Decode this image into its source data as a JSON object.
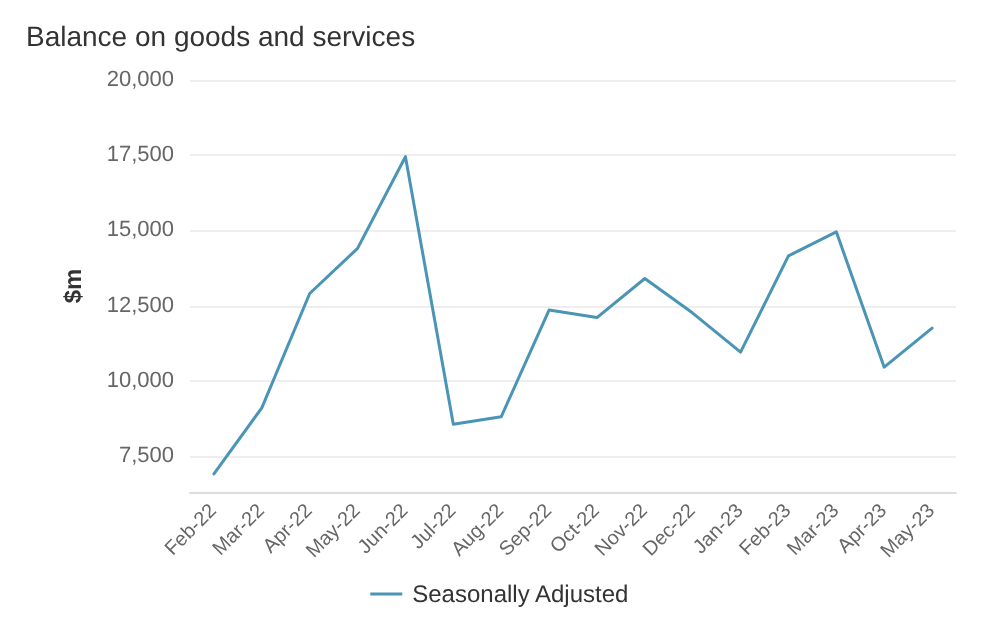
{
  "chart_data": {
    "type": "line",
    "title": "Balance on goods and services",
    "ylabel": "$m",
    "categories": [
      "Feb-22",
      "Mar-22",
      "Apr-22",
      "May-22",
      "Jun-22",
      "Jul-22",
      "Aug-22",
      "Sep-22",
      "Oct-22",
      "Nov-22",
      "Dec-22",
      "Jan-23",
      "Feb-23",
      "Mar-23",
      "Apr-23",
      "May-23"
    ],
    "series": [
      {
        "name": "Seasonally Adjusted",
        "color": "#4a95b5",
        "values": [
          6900,
          9100,
          12900,
          14400,
          17450,
          8550,
          8800,
          12350,
          12100,
          13400,
          12250,
          10950,
          14150,
          14950,
          10450,
          11750
        ]
      }
    ],
    "ylim": [
      6300,
      20000
    ],
    "yticks": [
      {
        "value": 7500,
        "label": "7,500"
      },
      {
        "value": 10000,
        "label": "10,000"
      },
      {
        "value": 12500,
        "label": "12,500"
      },
      {
        "value": 15000,
        "label": "15,000"
      },
      {
        "value": 17500,
        "label": "17,500"
      },
      {
        "value": 20000,
        "label": "20,000"
      }
    ],
    "grid": "y",
    "legend": "bottom",
    "marker": "none",
    "line_style": "solid"
  }
}
